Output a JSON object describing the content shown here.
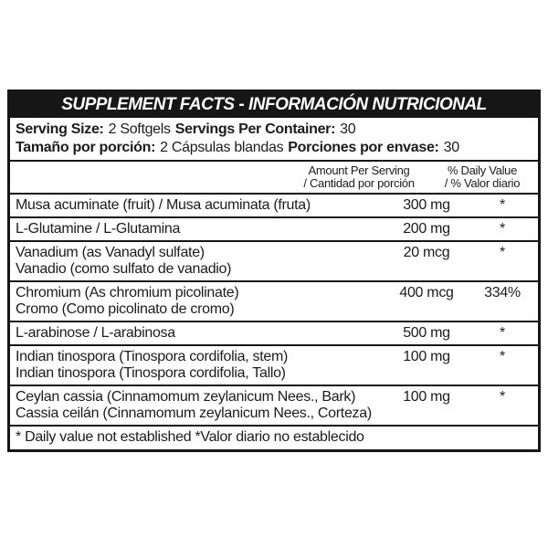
{
  "label": {
    "title": "SUPPLEMENT FACTS - INFORMACIÓN NUTRICIONAL",
    "serving": {
      "en": {
        "size_label": "Serving Size:",
        "size_value": "2 Softgels",
        "count_label": "Servings Per Container:",
        "count_value": "30"
      },
      "es": {
        "size_label": "Tamaño por porción:",
        "size_value": "2 Cápsulas blandas",
        "count_label": "Porciones por envase:",
        "count_value": "30"
      }
    },
    "columns": {
      "amount": [
        "Amount Per Serving",
        "/ Cantidad por porción"
      ],
      "daily_value": [
        "% Daily Value",
        "/ % Valor diario"
      ]
    },
    "rows": [
      {
        "name_lines": [
          "Musa acuminate (fruit) / Musa acuminata (fruta)"
        ],
        "amount": "300 mg",
        "daily_value": "*"
      },
      {
        "name_lines": [
          "L-Glutamine / L-Glutamina"
        ],
        "amount": "200 mg",
        "daily_value": "*"
      },
      {
        "name_lines": [
          "Vanadium (as Vanadyl sulfate)",
          "Vanadio (como sulfato de vanadio)"
        ],
        "amount": "20 mcg",
        "daily_value": "*"
      },
      {
        "name_lines": [
          "Chromium (As chromium picolinate)",
          "Cromo (Como picolinato de cromo)"
        ],
        "amount": "400 mcg",
        "daily_value": "334%"
      },
      {
        "name_lines": [
          "L-arabinose / L-arabinosa"
        ],
        "amount": "500 mg",
        "daily_value": "*"
      },
      {
        "name_lines": [
          "Indian tinospora (Tinospora cordifolia, stem)",
          "Indian tinospora (Tinospora cordifolia, Tallo)"
        ],
        "amount": "100 mg",
        "daily_value": "*"
      },
      {
        "name_lines": [
          "Ceylan cassia (Cinnamomum zeylanicum Nees., Bark)",
          "Cassia ceilán (Cinnamomum zeylanicum Nees., Corteza)"
        ],
        "amount": "100 mg",
        "daily_value": "*"
      }
    ],
    "footnote": "* Daily value not established *Valor diario no establecido",
    "colors": {
      "ink": "#1c1c1c",
      "bar_background": "#161616",
      "bar_text": "#ffffff",
      "paper": "#ffffff"
    }
  }
}
